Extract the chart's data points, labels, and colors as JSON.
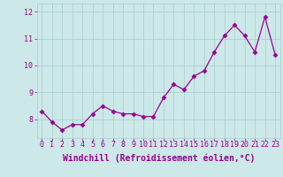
{
  "x": [
    0,
    1,
    2,
    3,
    4,
    5,
    6,
    7,
    8,
    9,
    10,
    11,
    12,
    13,
    14,
    15,
    16,
    17,
    18,
    19,
    20,
    21,
    22,
    23
  ],
  "y": [
    8.3,
    7.9,
    7.6,
    7.8,
    7.8,
    8.2,
    8.5,
    8.3,
    8.2,
    8.2,
    8.1,
    8.1,
    8.8,
    9.3,
    9.1,
    9.6,
    9.8,
    10.5,
    11.1,
    11.5,
    11.1,
    10.5,
    11.8,
    10.4
  ],
  "line_color": "#990099",
  "marker": "D",
  "markersize": 2.5,
  "linewidth": 0.9,
  "xlabel": "Windchill (Refroidissement éolien,°C)",
  "ylim": [
    7.3,
    12.3
  ],
  "xlim": [
    -0.5,
    23.5
  ],
  "yticks": [
    8,
    9,
    10,
    11,
    12
  ],
  "xtick_labels": [
    "0",
    "1",
    "2",
    "3",
    "4",
    "5",
    "6",
    "7",
    "8",
    "9",
    "10",
    "11",
    "12",
    "13",
    "14",
    "15",
    "16",
    "17",
    "18",
    "19",
    "20",
    "21",
    "22",
    "23"
  ],
  "background_color": "#cce8e8",
  "grid_color": "#aacccc",
  "label_color": "#990099",
  "font_size": 6,
  "xlabel_fontsize": 7
}
